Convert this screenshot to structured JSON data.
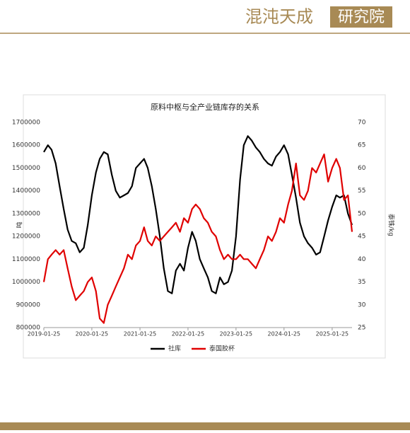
{
  "header": {
    "logo": "混沌天成",
    "logo_box": "研究院"
  },
  "chart_data": {
    "type": "line",
    "title": "原料中枢与全产业链库存的关系",
    "y_label": "吨",
    "y2_label": "泰铢/kg",
    "x": [
      "2019-01-25",
      "2019-02-25",
      "2019-03-25",
      "2019-04-25",
      "2019-05-25",
      "2019-06-25",
      "2019-07-25",
      "2019-08-25",
      "2019-09-25",
      "2019-10-25",
      "2019-11-25",
      "2019-12-25",
      "2020-01-25",
      "2020-02-25",
      "2020-03-25",
      "2020-04-25",
      "2020-05-25",
      "2020-06-25",
      "2020-07-25",
      "2020-08-25",
      "2020-09-25",
      "2020-10-25",
      "2020-11-25",
      "2020-12-25",
      "2021-01-25",
      "2021-02-25",
      "2021-03-25",
      "2021-04-25",
      "2021-05-25",
      "2021-06-25",
      "2021-07-25",
      "2021-08-25",
      "2021-09-25",
      "2021-10-25",
      "2021-11-25",
      "2021-12-25",
      "2022-01-25",
      "2022-02-25",
      "2022-03-25",
      "2022-04-25",
      "2022-05-25",
      "2022-06-25",
      "2022-07-25",
      "2022-08-25",
      "2022-09-25",
      "2022-10-25",
      "2022-11-25",
      "2022-12-25",
      "2023-01-25",
      "2023-02-25",
      "2023-03-25",
      "2023-04-25",
      "2023-05-25",
      "2023-06-25",
      "2023-07-25",
      "2023-08-25",
      "2023-09-25",
      "2023-10-25",
      "2023-11-25",
      "2023-12-25",
      "2024-01-25",
      "2024-02-25",
      "2024-03-25",
      "2024-04-25",
      "2024-05-25",
      "2024-06-25",
      "2024-07-25",
      "2024-08-25",
      "2024-09-25",
      "2024-10-25",
      "2024-11-25",
      "2024-12-25",
      "2025-01-25",
      "2025-02-25",
      "2025-03-25",
      "2025-04-25",
      "2025-05-25",
      "2025-06-25"
    ],
    "series": [
      {
        "name": "社库",
        "color": "#000000",
        "axis": "y",
        "values": [
          1570000,
          1600000,
          1580000,
          1520000,
          1420000,
          1320000,
          1230000,
          1180000,
          1170000,
          1130000,
          1150000,
          1250000,
          1380000,
          1480000,
          1540000,
          1570000,
          1560000,
          1470000,
          1400000,
          1370000,
          1380000,
          1390000,
          1420000,
          1500000,
          1520000,
          1540000,
          1500000,
          1420000,
          1320000,
          1200000,
          1060000,
          960000,
          950000,
          1050000,
          1080000,
          1050000,
          1150000,
          1220000,
          1180000,
          1100000,
          1060000,
          1020000,
          960000,
          950000,
          1020000,
          990000,
          1000000,
          1050000,
          1200000,
          1450000,
          1600000,
          1640000,
          1620000,
          1590000,
          1570000,
          1540000,
          1520000,
          1510000,
          1550000,
          1570000,
          1600000,
          1560000,
          1470000,
          1370000,
          1260000,
          1200000,
          1170000,
          1150000,
          1120000,
          1130000,
          1200000,
          1270000,
          1330000,
          1380000,
          1370000,
          1380000,
          1300000,
          1250000
        ]
      },
      {
        "name": "泰国胶杯",
        "color": "#e00000",
        "axis": "y2",
        "values": [
          35,
          40,
          41,
          42,
          41,
          42,
          38,
          34,
          31,
          32,
          33,
          35,
          36,
          33,
          27,
          26,
          30,
          32,
          34,
          36,
          38,
          41,
          40,
          43,
          44,
          47,
          44,
          43,
          45,
          44,
          45,
          46,
          47,
          48,
          46,
          49,
          48,
          51,
          52,
          51,
          49,
          48,
          46,
          45,
          42,
          40,
          41,
          40,
          40,
          41,
          40,
          40,
          39,
          38,
          40,
          42,
          45,
          44,
          46,
          49,
          48,
          52,
          55,
          61,
          54,
          53,
          55,
          60,
          59,
          61,
          63,
          57,
          60,
          62,
          60,
          53,
          54,
          46
        ]
      }
    ],
    "xlim": [
      "2019-01-25",
      "2025-06-25"
    ],
    "xticks": [
      "2019-01-25",
      "2020-01-25",
      "2021-01-25",
      "2022-01-25",
      "2023-01-25",
      "2024-01-25",
      "2025-01-25"
    ],
    "ylim": [
      800000,
      1700000
    ],
    "yticks": [
      800000,
      900000,
      1000000,
      1100000,
      1200000,
      1300000,
      1400000,
      1500000,
      1600000,
      1700000
    ],
    "y2lim": [
      25,
      70
    ],
    "y2ticks": [
      25,
      30,
      35,
      40,
      45,
      50,
      55,
      60,
      65,
      70
    ],
    "grid": false,
    "legend": "bottom"
  }
}
